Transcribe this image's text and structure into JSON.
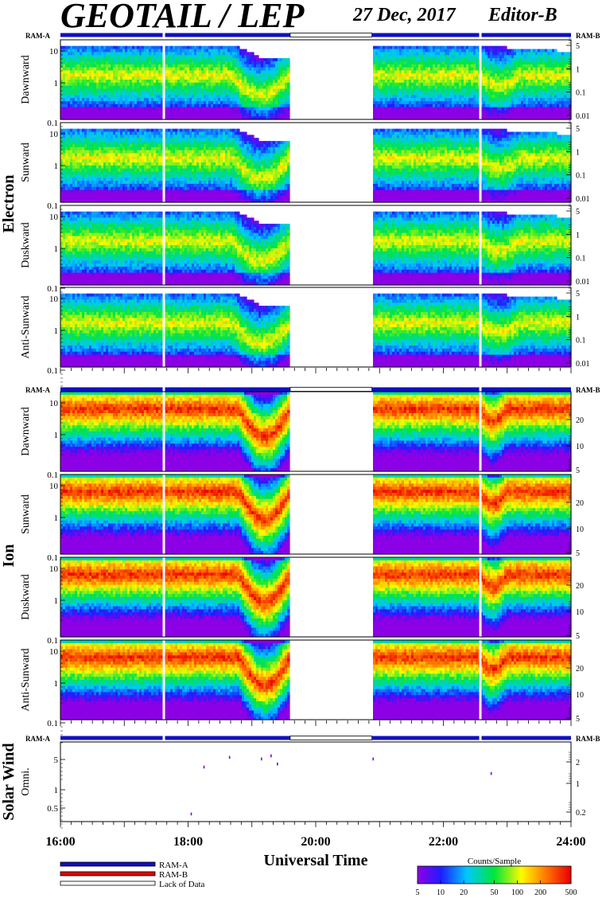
{
  "header": {
    "title": "GEOTAIL / LEP",
    "date": "27 Dec, 2017",
    "editor": "Editor-B"
  },
  "chart_data": {
    "type": "heatmap",
    "x_axis": {
      "label": "Universal Time",
      "range": [
        16,
        24
      ],
      "ticks": [
        "16:00",
        "18:00",
        "20:00",
        "22:00",
        "24:00"
      ]
    },
    "data_gap_hours": [
      [
        19.6,
        20.88
      ]
    ],
    "dropout_hours": [
      17.62,
      22.58
    ],
    "mode_labels": {
      "a": "RAM-A",
      "b": "RAM-B"
    },
    "groups": [
      {
        "name": "Electron",
        "panels": [
          {
            "name": "Dawnward",
            "y_ticks": [
              "10",
              "1",
              "0.1"
            ],
            "y_right_ticks": [
              "5",
              "1",
              "0.1",
              "0.01"
            ]
          },
          {
            "name": "Sunward",
            "y_ticks": [
              "10",
              "1",
              "0.1"
            ],
            "y_right_ticks": [
              "5",
              "1",
              "0.1",
              "0.01"
            ]
          },
          {
            "name": "Duskward",
            "y_ticks": [
              "10",
              "1",
              "0.1"
            ],
            "y_right_ticks": [
              "5",
              "1",
              "0.1",
              "0.01"
            ]
          },
          {
            "name": "Anti-Sunward",
            "y_ticks": [
              "10",
              "1",
              "0.1"
            ],
            "y_right_ticks": [
              "5",
              "1",
              "0.1",
              "0.01"
            ]
          }
        ]
      },
      {
        "name": "Ion",
        "panels": [
          {
            "name": "Dawnward",
            "y_ticks": [
              "10",
              "1",
              "0.1"
            ],
            "y_right_ticks": [
              "20",
              "10",
              "5"
            ]
          },
          {
            "name": "Sunward",
            "y_ticks": [
              "10",
              "1",
              "0.1"
            ],
            "y_right_ticks": [
              "20",
              "10",
              "5"
            ]
          },
          {
            "name": "Duskward",
            "y_ticks": [
              "10",
              "1",
              "0.1"
            ],
            "y_right_ticks": [
              "20",
              "10",
              "5"
            ]
          },
          {
            "name": "Anti-Sunward",
            "y_ticks": [
              "10",
              "1",
              "0.1"
            ],
            "y_right_ticks": [
              "20",
              "10",
              "5"
            ]
          }
        ]
      },
      {
        "name": "Solar Wind",
        "panels": [
          {
            "name": "Omni.",
            "y_ticks": [
              "5",
              "1",
              "0.5"
            ],
            "y_right_ticks": [
              "2",
              "1",
              "0.2"
            ],
            "points": [
              {
                "t": 18.05,
                "e": 0.35
              },
              {
                "t": 18.25,
                "e": 2.8
              },
              {
                "t": 18.65,
                "e": 4.3
              },
              {
                "t": 19.15,
                "e": 4.0
              },
              {
                "t": 19.3,
                "e": 4.6
              },
              {
                "t": 19.4,
                "e": 3.2
              },
              {
                "t": 20.9,
                "e": 4.0
              },
              {
                "t": 22.75,
                "e": 2.1
              }
            ]
          }
        ]
      }
    ],
    "legend": {
      "items": [
        {
          "label": "RAM-A",
          "color": "#1010c0"
        },
        {
          "label": "RAM-B",
          "color": "#e00000"
        },
        {
          "label": "Lack of Data",
          "color": "#ffffff"
        }
      ]
    },
    "colorbar": {
      "title": "Counts/Sample",
      "ticks": [
        "5",
        "10",
        "20",
        "50",
        "100",
        "200",
        "500"
      ],
      "range": [
        5,
        500
      ]
    }
  }
}
